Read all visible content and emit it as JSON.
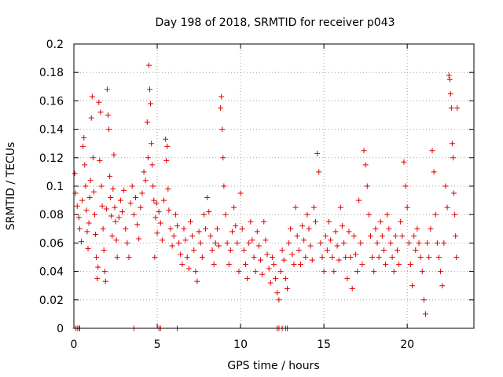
{
  "chart_data": {
    "type": "scatter",
    "title": "Day 198 of 2018, SRMTID for receiver p043",
    "xlabel": "GPS time / hours",
    "ylabel": "SRMTID / TECUs",
    "xlim": [
      0,
      24
    ],
    "ylim": [
      0,
      0.2
    ],
    "x_ticks": [
      0,
      5,
      10,
      15,
      20
    ],
    "x_tick_labels": [
      "0",
      "5",
      "10",
      "15",
      "20"
    ],
    "y_ticks": [
      0,
      0.02,
      0.04,
      0.06,
      0.08,
      0.1,
      0.12,
      0.14,
      0.16,
      0.18,
      0.2
    ],
    "y_tick_labels": [
      "0",
      "0.02",
      "0.04",
      "0.06",
      "0.08",
      "0.1",
      "0.12",
      "0.14",
      "0.16",
      "0.18",
      "0.2"
    ],
    "grid": true,
    "marker": "+",
    "color": "#e00000",
    "series": [
      {
        "name": "SRMTID",
        "points": [
          [
            0.05,
            0.109
          ],
          [
            0.1,
            0.095
          ],
          [
            0.2,
            0.086
          ],
          [
            0.3,
            0.078
          ],
          [
            0.35,
            0.07
          ],
          [
            0.45,
            0.061
          ],
          [
            0.5,
            0.09
          ],
          [
            0.55,
            0.128
          ],
          [
            0.6,
            0.134
          ],
          [
            0.65,
            0.115
          ],
          [
            0.7,
            0.1
          ],
          [
            0.75,
            0.083
          ],
          [
            0.8,
            0.068
          ],
          [
            0.85,
            0.056
          ],
          [
            0.9,
            0.074
          ],
          [
            0.95,
            0.092
          ],
          [
            1.0,
            0.104
          ],
          [
            1.05,
            0.148
          ],
          [
            1.1,
            0.163
          ],
          [
            1.15,
            0.12
          ],
          [
            1.2,
            0.096
          ],
          [
            1.25,
            0.08
          ],
          [
            1.3,
            0.066
          ],
          [
            1.35,
            0.05
          ],
          [
            1.4,
            0.035
          ],
          [
            1.45,
            0.043
          ],
          [
            1.5,
            0.159
          ],
          [
            1.55,
            0.118
          ],
          [
            1.6,
            0.152
          ],
          [
            1.65,
            0.1
          ],
          [
            1.7,
            0.086
          ],
          [
            1.75,
            0.07
          ],
          [
            1.8,
            0.055
          ],
          [
            1.85,
            0.04
          ],
          [
            1.9,
            0.033
          ],
          [
            1.95,
            0.084
          ],
          [
            2.0,
            0.168
          ],
          [
            2.05,
            0.15
          ],
          [
            2.1,
            0.14
          ],
          [
            2.15,
            0.107
          ],
          [
            2.2,
            0.092
          ],
          [
            2.25,
            0.079
          ],
          [
            2.3,
            0.065
          ],
          [
            2.35,
            0.098
          ],
          [
            2.4,
            0.122
          ],
          [
            2.45,
            0.085
          ],
          [
            2.5,
            0.075
          ],
          [
            2.55,
            0.062
          ],
          [
            2.6,
            0.05
          ],
          [
            2.7,
            0.078
          ],
          [
            2.8,
            0.09
          ],
          [
            2.9,
            0.082
          ],
          [
            3.0,
            0.097
          ],
          [
            3.1,
            0.07
          ],
          [
            3.2,
            0.06
          ],
          [
            3.3,
            0.05
          ],
          [
            3.4,
            0.088
          ],
          [
            3.5,
            0.1
          ],
          [
            3.6,
            0.08
          ],
          [
            3.7,
            0.092
          ],
          [
            3.8,
            0.073
          ],
          [
            3.9,
            0.063
          ],
          [
            4.0,
            0.085
          ],
          [
            4.1,
            0.095
          ],
          [
            4.2,
            0.11
          ],
          [
            4.3,
            0.104
          ],
          [
            4.4,
            0.145
          ],
          [
            4.45,
            0.12
          ],
          [
            4.5,
            0.185
          ],
          [
            4.55,
            0.168
          ],
          [
            4.6,
            0.158
          ],
          [
            4.65,
            0.13
          ],
          [
            4.7,
            0.115
          ],
          [
            4.75,
            0.1
          ],
          [
            4.8,
            0.09
          ],
          [
            4.85,
            0.05
          ],
          [
            4.9,
            0.078
          ],
          [
            4.95,
            0.088
          ],
          [
            5.0,
            0.067
          ],
          [
            5.1,
            0.082
          ],
          [
            5.2,
            0.074
          ],
          [
            5.3,
            0.062
          ],
          [
            5.4,
            0.09
          ],
          [
            5.5,
            0.133
          ],
          [
            5.55,
            0.118
          ],
          [
            5.6,
            0.128
          ],
          [
            5.65,
            0.098
          ],
          [
            5.7,
            0.083
          ],
          [
            5.8,
            0.07
          ],
          [
            5.9,
            0.058
          ],
          [
            6.0,
            0.065
          ],
          [
            6.1,
            0.08
          ],
          [
            6.2,
            0.072
          ],
          [
            6.3,
            0.06
          ],
          [
            6.4,
            0.052
          ],
          [
            6.5,
            0.045
          ],
          [
            6.6,
            0.07
          ],
          [
            6.7,
            0.062
          ],
          [
            6.8,
            0.05
          ],
          [
            6.9,
            0.042
          ],
          [
            7.0,
            0.075
          ],
          [
            7.1,
            0.065
          ],
          [
            7.2,
            0.055
          ],
          [
            7.3,
            0.04
          ],
          [
            7.4,
            0.033
          ],
          [
            7.5,
            0.068
          ],
          [
            7.6,
            0.06
          ],
          [
            7.7,
            0.05
          ],
          [
            7.8,
            0.08
          ],
          [
            7.9,
            0.07
          ],
          [
            8.0,
            0.092
          ],
          [
            8.1,
            0.082
          ],
          [
            8.2,
            0.065
          ],
          [
            8.3,
            0.055
          ],
          [
            8.4,
            0.045
          ],
          [
            8.5,
            0.06
          ],
          [
            8.6,
            0.07
          ],
          [
            8.7,
            0.058
          ],
          [
            8.8,
            0.155
          ],
          [
            8.85,
            0.163
          ],
          [
            8.9,
            0.14
          ],
          [
            8.95,
            0.12
          ],
          [
            9.0,
            0.1
          ],
          [
            9.1,
            0.08
          ],
          [
            9.2,
            0.06
          ],
          [
            9.3,
            0.045
          ],
          [
            9.4,
            0.055
          ],
          [
            9.5,
            0.068
          ],
          [
            9.6,
            0.085
          ],
          [
            9.7,
            0.072
          ],
          [
            9.8,
            0.06
          ],
          [
            9.9,
            0.04
          ],
          [
            10.0,
            0.095
          ],
          [
            10.1,
            0.07
          ],
          [
            10.2,
            0.055
          ],
          [
            10.3,
            0.045
          ],
          [
            10.4,
            0.035
          ],
          [
            10.5,
            0.06
          ],
          [
            10.6,
            0.075
          ],
          [
            10.7,
            0.062
          ],
          [
            10.8,
            0.05
          ],
          [
            10.9,
            0.04
          ],
          [
            11.0,
            0.068
          ],
          [
            11.1,
            0.058
          ],
          [
            11.2,
            0.048
          ],
          [
            11.3,
            0.038
          ],
          [
            11.4,
            0.075
          ],
          [
            11.5,
            0.062
          ],
          [
            11.6,
            0.052
          ],
          [
            11.7,
            0.042
          ],
          [
            11.8,
            0.032
          ],
          [
            11.9,
            0.05
          ],
          [
            12.0,
            0.045
          ],
          [
            12.1,
            0.035
          ],
          [
            12.2,
            0.025
          ],
          [
            12.3,
            0.02
          ],
          [
            12.4,
            0.04
          ],
          [
            12.5,
            0.055
          ],
          [
            12.6,
            0.048
          ],
          [
            12.7,
            0.035
          ],
          [
            12.8,
            0.028
          ],
          [
            12.9,
            0.06
          ],
          [
            13.0,
            0.07
          ],
          [
            13.1,
            0.052
          ],
          [
            13.2,
            0.045
          ],
          [
            13.3,
            0.085
          ],
          [
            13.4,
            0.065
          ],
          [
            13.5,
            0.055
          ],
          [
            13.6,
            0.045
          ],
          [
            13.7,
            0.072
          ],
          [
            13.8,
            0.062
          ],
          [
            13.9,
            0.05
          ],
          [
            14.0,
            0.08
          ],
          [
            14.1,
            0.07
          ],
          [
            14.2,
            0.058
          ],
          [
            14.3,
            0.048
          ],
          [
            14.4,
            0.085
          ],
          [
            14.5,
            0.075
          ],
          [
            14.6,
            0.123
          ],
          [
            14.7,
            0.11
          ],
          [
            14.8,
            0.06
          ],
          [
            14.9,
            0.05
          ],
          [
            15.0,
            0.04
          ],
          [
            15.1,
            0.065
          ],
          [
            15.2,
            0.055
          ],
          [
            15.3,
            0.075
          ],
          [
            15.4,
            0.062
          ],
          [
            15.5,
            0.05
          ],
          [
            15.6,
            0.04
          ],
          [
            15.7,
            0.068
          ],
          [
            15.8,
            0.058
          ],
          [
            15.9,
            0.048
          ],
          [
            16.0,
            0.085
          ],
          [
            16.1,
            0.072
          ],
          [
            16.2,
            0.06
          ],
          [
            16.3,
            0.05
          ],
          [
            16.4,
            0.035
          ],
          [
            16.5,
            0.068
          ],
          [
            16.6,
            0.05
          ],
          [
            16.7,
            0.028
          ],
          [
            16.8,
            0.065
          ],
          [
            16.9,
            0.052
          ],
          [
            17.0,
            0.04
          ],
          [
            17.1,
            0.09
          ],
          [
            17.2,
            0.06
          ],
          [
            17.3,
            0.045
          ],
          [
            17.4,
            0.125
          ],
          [
            17.5,
            0.115
          ],
          [
            17.6,
            0.1
          ],
          [
            17.7,
            0.08
          ],
          [
            17.8,
            0.065
          ],
          [
            17.9,
            0.05
          ],
          [
            18.0,
            0.04
          ],
          [
            18.1,
            0.07
          ],
          [
            18.2,
            0.06
          ],
          [
            18.3,
            0.05
          ],
          [
            18.4,
            0.075
          ],
          [
            18.5,
            0.065
          ],
          [
            18.6,
            0.055
          ],
          [
            18.7,
            0.045
          ],
          [
            18.8,
            0.08
          ],
          [
            18.9,
            0.07
          ],
          [
            19.0,
            0.06
          ],
          [
            19.1,
            0.05
          ],
          [
            19.2,
            0.04
          ],
          [
            19.3,
            0.065
          ],
          [
            19.4,
            0.055
          ],
          [
            19.5,
            0.045
          ],
          [
            19.6,
            0.075
          ],
          [
            19.7,
            0.065
          ],
          [
            19.8,
            0.117
          ],
          [
            19.9,
            0.1
          ],
          [
            20.0,
            0.085
          ],
          [
            20.1,
            0.06
          ],
          [
            20.2,
            0.045
          ],
          [
            20.3,
            0.03
          ],
          [
            20.4,
            0.065
          ],
          [
            20.5,
            0.055
          ],
          [
            20.6,
            0.07
          ],
          [
            20.7,
            0.06
          ],
          [
            20.8,
            0.05
          ],
          [
            20.9,
            0.04
          ],
          [
            21.0,
            0.02
          ],
          [
            21.1,
            0.01
          ],
          [
            21.2,
            0.06
          ],
          [
            21.3,
            0.05
          ],
          [
            21.4,
            0.07
          ],
          [
            21.5,
            0.125
          ],
          [
            21.6,
            0.11
          ],
          [
            21.7,
            0.08
          ],
          [
            21.8,
            0.06
          ],
          [
            21.9,
            0.05
          ],
          [
            22.0,
            0.04
          ],
          [
            22.1,
            0.03
          ],
          [
            22.2,
            0.06
          ],
          [
            22.3,
            0.1
          ],
          [
            22.4,
            0.085
          ],
          [
            22.5,
            0.178
          ],
          [
            22.55,
            0.175
          ],
          [
            22.6,
            0.165
          ],
          [
            22.65,
            0.155
          ],
          [
            22.7,
            0.13
          ],
          [
            22.75,
            0.12
          ],
          [
            22.8,
            0.095
          ],
          [
            22.85,
            0.08
          ],
          [
            22.9,
            0.065
          ],
          [
            22.95,
            0.05
          ],
          [
            23.0,
            0.155
          ],
          [
            0.1,
            0
          ],
          [
            0.2,
            0
          ],
          [
            0.3,
            0
          ],
          [
            0.35,
            0
          ],
          [
            3.6,
            0
          ],
          [
            5.1,
            0
          ],
          [
            5.2,
            0
          ],
          [
            6.2,
            0
          ],
          [
            12.2,
            0
          ],
          [
            12.3,
            0
          ],
          [
            12.5,
            0
          ],
          [
            12.7,
            0
          ],
          [
            12.8,
            0
          ]
        ]
      }
    ]
  }
}
